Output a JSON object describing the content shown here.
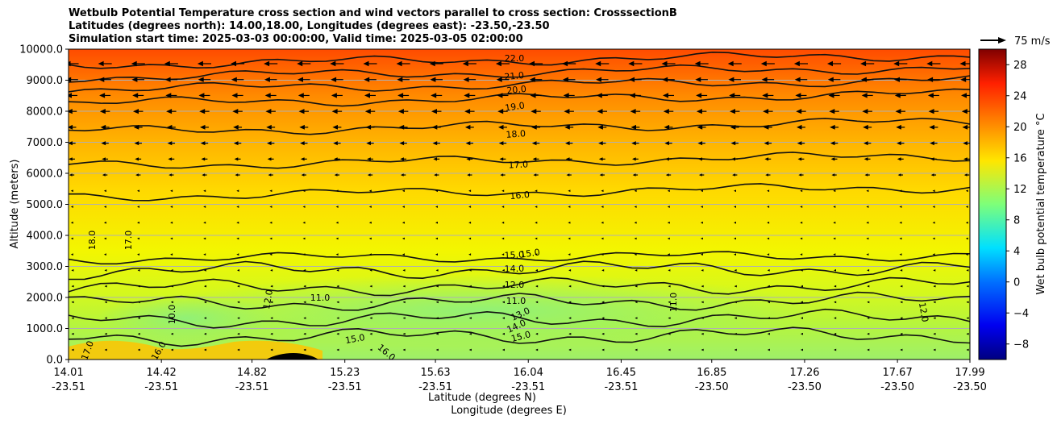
{
  "title_lines": [
    "Wetbulb Potential Temperature cross section and wind vectors parallel to cross section: CrosssectionB",
    "Latitudes (degrees north): 14.00,18.00, Longitudes (degrees east): -23.50,-23.50",
    "Simulation start time: 2025-03-03 00:00:00, Valid time: 2025-03-05 02:00:00"
  ],
  "chart_data": {
    "type": "heatmap",
    "xlabel": "Latitude (degrees N)",
    "xlabel2": "Longitude (degrees E)",
    "ylabel": "Altitude (meters)",
    "xlim": [
      14.01,
      17.99
    ],
    "ylim": [
      0,
      10000
    ],
    "x_tick_lat": [
      "14.01",
      "14.42",
      "14.82",
      "15.23",
      "15.63",
      "16.04",
      "16.45",
      "16.85",
      "17.26",
      "17.67",
      "17.99"
    ],
    "x_tick_lon": [
      "-23.51",
      "-23.51",
      "-23.51",
      "-23.51",
      "-23.51",
      "-23.51",
      "-23.51",
      "-23.50",
      "-23.50",
      "-23.50",
      "-23.50"
    ],
    "y_ticks": [
      0,
      1000,
      2000,
      3000,
      4000,
      5000,
      6000,
      7000,
      8000,
      9000,
      10000
    ],
    "y_tick_labels": [
      "0.0",
      "1000.0",
      "2000.0",
      "3000.0",
      "4000.0",
      "5000.0",
      "6000.0",
      "7000.0",
      "8000.0",
      "9000.0",
      "10000.0"
    ],
    "grid": "horizontal",
    "colorbar": {
      "label": "Wet bulb potential temperature °C",
      "range": [
        -10,
        30
      ],
      "ticks": [
        -8,
        -4,
        0,
        4,
        8,
        12,
        16,
        20,
        24,
        28
      ],
      "tick_labels": [
        "−8",
        "−4",
        "0",
        "4",
        "8",
        "12",
        "16",
        "20",
        "24",
        "28"
      ]
    },
    "contour_labels": [
      "22.0",
      "21.0",
      "20.0",
      "19.0",
      "18.0",
      "17.0",
      "16.0",
      "15.0",
      "15.0",
      "14.0",
      "12.0",
      "11.0",
      "13.0",
      "14.0",
      "15.0",
      "18.0",
      "17.0",
      "12.0",
      "11.0",
      "10.0",
      "16.0",
      "17.0",
      "15.0",
      "16.0",
      "11.0",
      "12.0"
    ],
    "contour_levels": [
      {
        "value": 22,
        "alt": 9500
      },
      {
        "value": 21,
        "alt": 9100
      },
      {
        "value": 20,
        "alt": 8700
      },
      {
        "value": 19,
        "alt": 8250
      },
      {
        "value": 18,
        "alt": 7350
      },
      {
        "value": 17,
        "alt": 6250
      },
      {
        "value": 16,
        "alt": 5250
      },
      {
        "value": 15,
        "alt": 3250
      },
      {
        "value": 14,
        "alt": 2850
      },
      {
        "value": 12,
        "alt": 2300
      },
      {
        "value": 11,
        "alt": 1800
      },
      {
        "value": 13,
        "alt": 1250
      },
      {
        "value": 15,
        "alt": 700
      }
    ],
    "wind_key": {
      "label": "75 m/s"
    }
  }
}
